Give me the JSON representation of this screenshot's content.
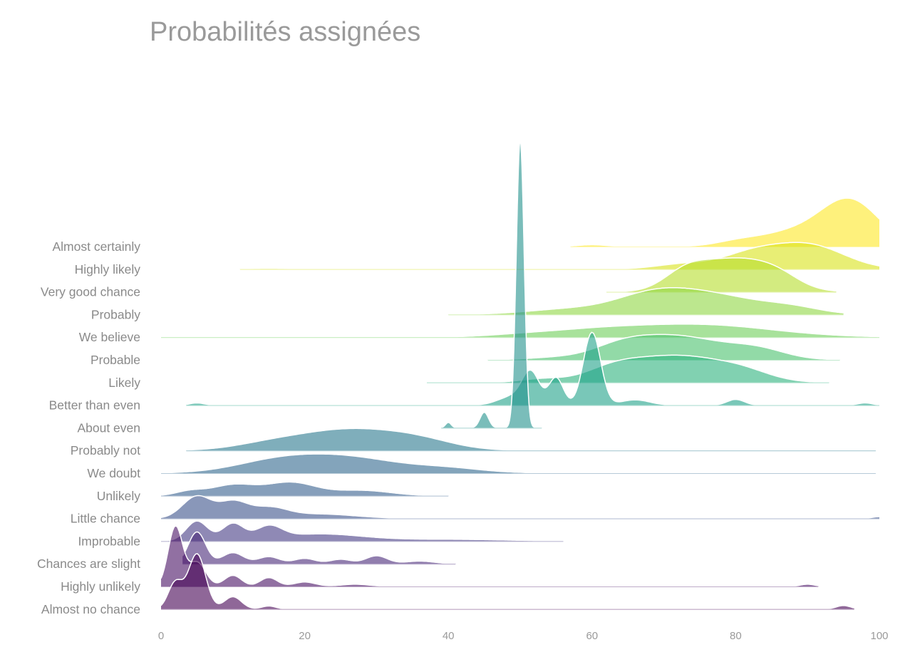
{
  "chart_data": {
    "type": "ridgeline",
    "title": "Probabilités assignées",
    "xlabel": "",
    "ylabel": "",
    "xlim": [
      0,
      100
    ],
    "x_ticks": [
      0,
      20,
      40,
      60,
      80,
      100
    ],
    "grid": false,
    "legend": "none",
    "categories": [
      "Almost certainly",
      "Highly likely",
      "Very good chance",
      "Probably",
      "We believe",
      "Probable",
      "Likely",
      "Better than even",
      "About even",
      "Probably not",
      "We doubt",
      "Unlikely",
      "Little chance",
      "Improbable",
      "Chances are slight",
      "Highly unlikely",
      "Almost no chance"
    ],
    "series": [
      {
        "name": "Almost certainly",
        "color": "#fde725",
        "range": [
          57,
          100
        ],
        "peaks": [
          [
            96,
            1.0,
            4
          ],
          [
            88,
            0.32,
            5
          ],
          [
            80,
            0.08,
            3
          ],
          [
            60,
            0.04,
            2
          ]
        ]
      },
      {
        "name": "Highly likely",
        "color": "#d8e219",
        "range": [
          11,
          100
        ],
        "peaks": [
          [
            90,
            0.55,
            5
          ],
          [
            82,
            0.3,
            4
          ],
          [
            73,
            0.12,
            4
          ],
          [
            15,
            0.02,
            3
          ]
        ]
      },
      {
        "name": "Very good chance",
        "color": "#b5de2b",
        "range": [
          62,
          94
        ],
        "peaks": [
          [
            80,
            0.72,
            5
          ],
          [
            73,
            0.35,
            3
          ],
          [
            86,
            0.2,
            3
          ]
        ]
      },
      {
        "name": "Probably",
        "color": "#90d743",
        "range": [
          40,
          95
        ],
        "peaks": [
          [
            76,
            0.45,
            7
          ],
          [
            68,
            0.3,
            5
          ],
          [
            57,
            0.12,
            6
          ],
          [
            88,
            0.12,
            4
          ]
        ]
      },
      {
        "name": "We believe",
        "color": "#6ece58",
        "range": [
          0,
          100
        ],
        "peaks": [
          [
            75,
            0.28,
            10
          ],
          [
            60,
            0.12,
            7
          ],
          [
            50,
            0.04,
            5
          ]
        ]
      },
      {
        "name": "Probable",
        "color": "#4ac16d",
        "range": [
          45.5,
          94.5
        ],
        "peaks": [
          [
            72,
            0.52,
            6
          ],
          [
            64,
            0.25,
            4
          ],
          [
            83,
            0.22,
            4
          ],
          [
            55,
            0.05,
            4
          ]
        ]
      },
      {
        "name": "Likely",
        "color": "#2db27d",
        "range": [
          37,
          93
        ],
        "peaks": [
          [
            72,
            0.58,
            6
          ],
          [
            63,
            0.28,
            4
          ],
          [
            81,
            0.2,
            4
          ],
          [
            53,
            0.08,
            3
          ],
          [
            40,
            0.01,
            2
          ]
        ]
      },
      {
        "name": "Better than even",
        "color": "#1fa188",
        "range": [
          3.5,
          100
        ],
        "peaks": [
          [
            60,
            1.65,
            1.2
          ],
          [
            55,
            0.62,
            1
          ],
          [
            51.5,
            0.7,
            1.2
          ],
          [
            49,
            0.2,
            2
          ],
          [
            66,
            0.12,
            2
          ],
          [
            80,
            0.13,
            1.2
          ],
          [
            98,
            0.05,
            1
          ],
          [
            5,
            0.05,
            1
          ]
        ]
      },
      {
        "name": "About even",
        "color": "#21918c",
        "range": [
          39,
          53
        ],
        "peaks": [
          [
            50,
            6.5,
            0.55
          ],
          [
            45,
            0.35,
            0.6
          ],
          [
            40,
            0.12,
            0.4
          ]
        ]
      },
      {
        "name": "Probably not",
        "color": "#2a788e",
        "range": [
          3.5,
          99.5
        ],
        "peaks": [
          [
            26,
            0.46,
            7
          ],
          [
            36,
            0.18,
            5
          ],
          [
            15,
            0.12,
            5
          ]
        ]
      },
      {
        "name": "We doubt",
        "color": "#31688e",
        "range": [
          0,
          99.5
        ],
        "peaks": [
          [
            26,
            0.34,
            7
          ],
          [
            16,
            0.24,
            6
          ],
          [
            40,
            0.1,
            5
          ],
          [
            60,
            0.01,
            6
          ]
        ]
      },
      {
        "name": "Unlikely",
        "color": "#355f8d",
        "range": [
          0,
          40
        ],
        "peaks": [
          [
            18,
            0.3,
            3.5
          ],
          [
            10,
            0.24,
            3
          ],
          [
            28,
            0.12,
            4
          ],
          [
            4,
            0.1,
            2
          ]
        ]
      },
      {
        "name": "Little chance",
        "color": "#3b528b",
        "range": [
          0,
          100
        ],
        "peaks": [
          [
            5,
            0.5,
            2
          ],
          [
            10,
            0.36,
            2
          ],
          [
            15,
            0.22,
            2.5
          ],
          [
            22,
            0.1,
            5
          ],
          [
            100,
            0.04,
            1
          ]
        ]
      },
      {
        "name": "Improbable",
        "color": "#443a83",
        "range": [
          0,
          56
        ],
        "peaks": [
          [
            10,
            0.38,
            1.5
          ],
          [
            15,
            0.28,
            1.8
          ],
          [
            5,
            0.45,
            1.5
          ],
          [
            22,
            0.16,
            6
          ],
          [
            40,
            0.04,
            8
          ]
        ]
      },
      {
        "name": "Chances are slight",
        "color": "#482878",
        "range": [
          3,
          41
        ],
        "peaks": [
          [
            5,
            0.72,
            1.2
          ],
          [
            10,
            0.25,
            1.5
          ],
          [
            15,
            0.16,
            1.5
          ],
          [
            20,
            0.12,
            1.5
          ],
          [
            25,
            0.1,
            1.5
          ],
          [
            30,
            0.18,
            1.5
          ],
          [
            36,
            0.06,
            2
          ]
        ]
      },
      {
        "name": "Highly unlikely",
        "color": "#471164",
        "range": [
          0,
          91.5
        ],
        "peaks": [
          [
            2,
            1.35,
            1
          ],
          [
            5,
            0.55,
            1.2
          ],
          [
            10,
            0.25,
            1.2
          ],
          [
            15,
            0.2,
            1.2
          ],
          [
            20,
            0.1,
            1.5
          ],
          [
            27,
            0.05,
            2
          ],
          [
            90,
            0.05,
            1
          ]
        ]
      },
      {
        "name": "Almost no chance",
        "color": "#440154",
        "range": [
          0,
          96.5
        ],
        "peaks": [
          [
            5,
            1.25,
            1.2
          ],
          [
            2,
            0.6,
            1
          ],
          [
            10,
            0.28,
            1.2
          ],
          [
            15,
            0.07,
            1
          ],
          [
            95,
            0.08,
            1
          ]
        ]
      }
    ]
  }
}
